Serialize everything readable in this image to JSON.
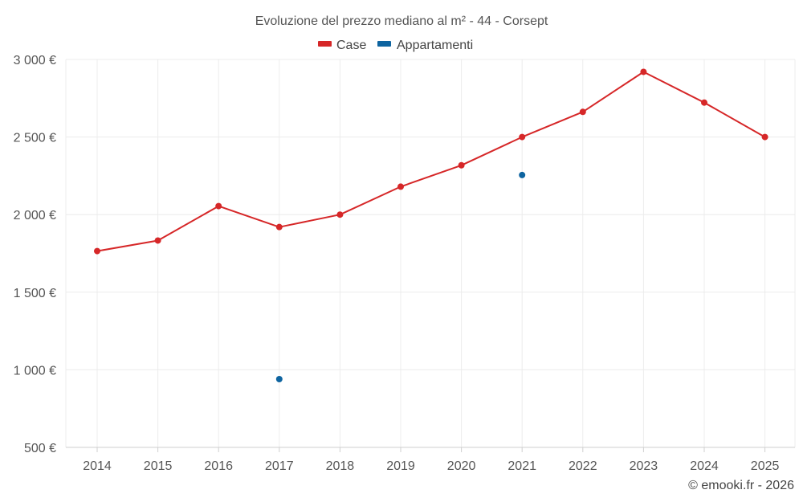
{
  "chart_data": {
    "type": "line",
    "title": "Evoluzione del prezzo mediano al m² - 44 - Corsept",
    "categories": [
      "2014",
      "2015",
      "2016",
      "2017",
      "2018",
      "2019",
      "2020",
      "2021",
      "2022",
      "2023",
      "2024",
      "2025"
    ],
    "ylim": [
      500,
      3000
    ],
    "yticks": [
      500,
      1000,
      1500,
      2000,
      2500,
      3000
    ],
    "ytick_labels": [
      "500 €",
      "1 000 €",
      "1 500 €",
      "2 000 €",
      "2 500 €",
      "3 000 €"
    ],
    "grid": true,
    "legend_position": "top-center",
    "series": [
      {
        "name": "Case",
        "color": "#d62728",
        "mode": "lines+markers",
        "values": [
          1765,
          1833,
          2055,
          1920,
          2000,
          2180,
          2318,
          2500,
          2662,
          2920,
          2722,
          2500
        ]
      },
      {
        "name": "Appartamenti",
        "color": "#0e64a0",
        "mode": "markers",
        "values": [
          null,
          null,
          null,
          940,
          null,
          null,
          null,
          2255,
          null,
          null,
          null,
          null
        ]
      }
    ]
  },
  "credit": "© emooki.fr - 2026"
}
